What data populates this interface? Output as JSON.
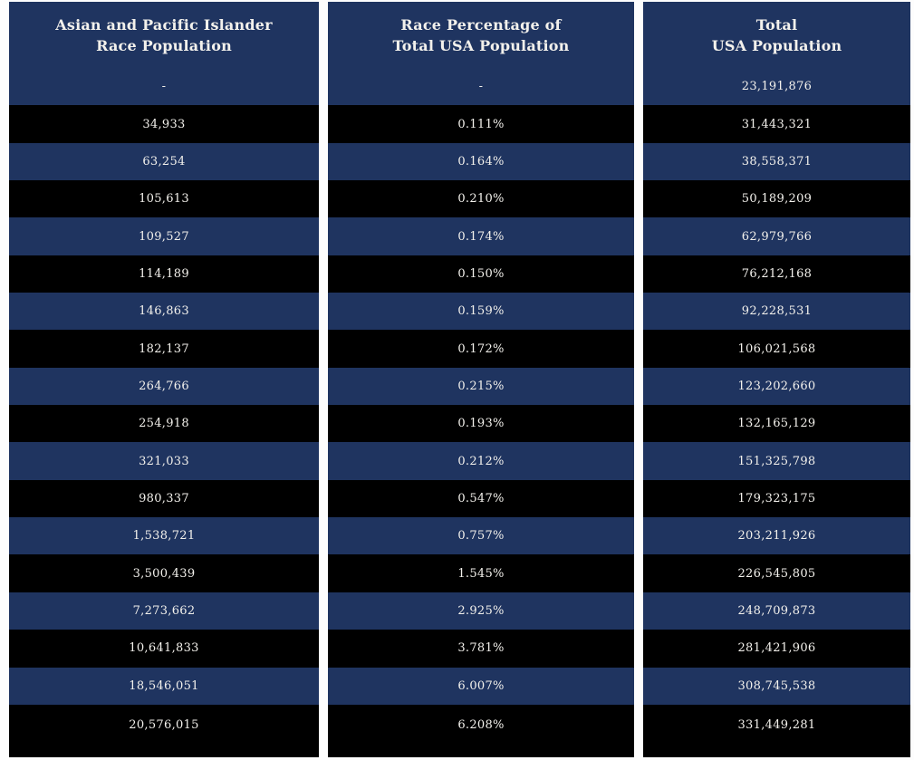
{
  "chart_data": {
    "type": "table",
    "title": "",
    "columns": [
      {
        "header": "Asian and Pacific Islander Race Population",
        "header_line1": "Asian and Pacific Islander",
        "header_line2": "Race Population",
        "values": [
          "-",
          "34,933",
          "63,254",
          "105,613",
          "109,527",
          "114,189",
          "146,863",
          "182,137",
          "264,766",
          "254,918",
          "321,033",
          "980,337",
          "1,538,721",
          "3,500,439",
          "7,273,662",
          "10,641,833",
          "18,546,051",
          "20,576,015"
        ]
      },
      {
        "header": "Race Percentage of Total USA Population",
        "header_line1": "Race Percentage of",
        "header_line2": "Total USA Population",
        "values": [
          "-",
          "0.111%",
          "0.164%",
          "0.210%",
          "0.174%",
          "0.150%",
          "0.159%",
          "0.172%",
          "0.215%",
          "0.193%",
          "0.212%",
          "0.547%",
          "0.757%",
          "1.545%",
          "2.925%",
          "3.781%",
          "6.007%",
          "6.208%"
        ]
      },
      {
        "header": "Total USA Population",
        "header_line1": "Total",
        "header_line2": "USA Population",
        "values": [
          "23,191,876",
          "31,443,321",
          "38,558,371",
          "50,189,209",
          "62,979,766",
          "76,212,168",
          "92,228,531",
          "106,021,568",
          "123,202,660",
          "132,165,129",
          "151,325,798",
          "179,323,175",
          "203,211,926",
          "226,545,805",
          "248,709,873",
          "281,421,906",
          "308,745,538",
          "331,449,281"
        ]
      }
    ],
    "layout": {
      "row_count": 18,
      "alternating_rows": true
    }
  },
  "colors": {
    "header_bg": "#1f3460",
    "row_odd_bg": "#000000",
    "row_even_bg": "#1f3460",
    "text": "#f3f1ec",
    "page_bg": "#fdfdfd"
  }
}
